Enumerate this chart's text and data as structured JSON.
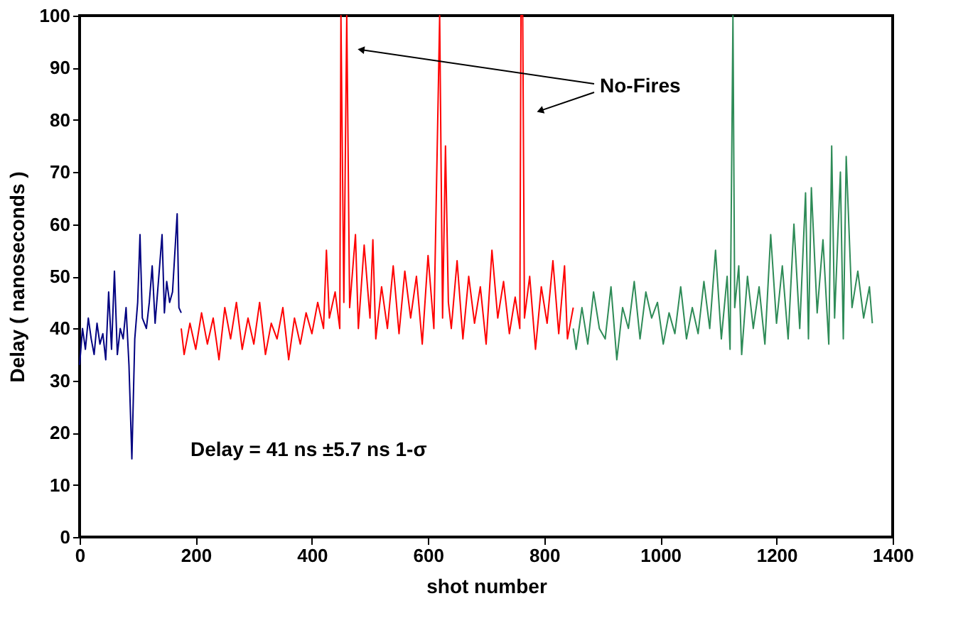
{
  "chart_data": {
    "type": "line",
    "xlabel": "shot number",
    "ylabel": "Delay ( nanoseconds )",
    "xlim": [
      0,
      1400
    ],
    "xticks": [
      0,
      200,
      400,
      600,
      800,
      1000,
      1200,
      1400
    ],
    "ylim": [
      0,
      100
    ],
    "yticks": [
      0,
      10,
      20,
      30,
      40,
      50,
      60,
      70,
      80,
      90,
      100
    ],
    "grid": false,
    "marker": "none",
    "line_style": "solid",
    "annotations": [
      "No-Fires",
      "Delay = 41 ns ±5.7 ns 1-σ"
    ],
    "series": [
      {
        "color": "#000080",
        "x": [
          0,
          5,
          10,
          15,
          20,
          25,
          30,
          35,
          40,
          45,
          50,
          55,
          60,
          65,
          70,
          75,
          80,
          85,
          90,
          95,
          100,
          104,
          108,
          115,
          120,
          125,
          130,
          135,
          142,
          146,
          150,
          155,
          160,
          168,
          171,
          175
        ],
        "values": [
          33,
          40,
          36,
          42,
          38,
          35,
          41,
          37,
          39,
          34,
          47,
          36,
          51,
          35,
          40,
          38,
          44,
          33,
          15,
          38,
          45,
          58,
          42,
          40,
          45,
          52,
          41,
          48,
          58,
          43,
          49,
          45,
          47,
          62,
          44,
          43
        ]
      },
      {
        "color": "#ff0000",
        "x": [
          175,
          180,
          190,
          200,
          210,
          220,
          230,
          240,
          250,
          260,
          270,
          280,
          290,
          300,
          310,
          320,
          330,
          340,
          350,
          360,
          370,
          380,
          390,
          400,
          410,
          420,
          425,
          430,
          440,
          448,
          450,
          455,
          460,
          465,
          475,
          480,
          490,
          500,
          505,
          510,
          520,
          530,
          540,
          550,
          560,
          570,
          580,
          590,
          600,
          610,
          620,
          625,
          630,
          635,
          640,
          650,
          660,
          670,
          680,
          690,
          700,
          710,
          720,
          730,
          740,
          750,
          758,
          760,
          763,
          766,
          775,
          785,
          795,
          805,
          815,
          825,
          835,
          840,
          850
        ],
        "values": [
          40,
          35,
          41,
          36,
          43,
          37,
          42,
          34,
          44,
          38,
          45,
          36,
          42,
          37,
          45,
          35,
          41,
          38,
          44,
          34,
          42,
          37,
          43,
          39,
          45,
          40,
          55,
          42,
          47,
          40,
          100,
          45,
          100,
          44,
          58,
          40,
          56,
          42,
          57,
          38,
          48,
          40,
          52,
          39,
          51,
          42,
          50,
          37,
          54,
          40,
          100,
          42,
          75,
          45,
          40,
          53,
          38,
          50,
          41,
          48,
          37,
          55,
          42,
          49,
          39,
          46,
          40,
          100,
          100,
          42,
          50,
          36,
          48,
          41,
          53,
          39,
          52,
          38,
          44
        ]
      },
      {
        "color": "#2e8b57",
        "x": [
          850,
          855,
          865,
          875,
          885,
          895,
          905,
          915,
          925,
          935,
          945,
          955,
          965,
          975,
          985,
          995,
          1005,
          1015,
          1025,
          1035,
          1045,
          1055,
          1065,
          1075,
          1085,
          1095,
          1105,
          1115,
          1120,
          1125,
          1128,
          1135,
          1140,
          1150,
          1160,
          1170,
          1180,
          1190,
          1200,
          1210,
          1220,
          1230,
          1240,
          1250,
          1255,
          1260,
          1270,
          1280,
          1290,
          1295,
          1300,
          1310,
          1315,
          1320,
          1330,
          1340,
          1350,
          1360,
          1365
        ],
        "values": [
          40,
          36,
          44,
          37,
          47,
          40,
          38,
          48,
          34,
          44,
          40,
          49,
          38,
          47,
          42,
          45,
          37,
          43,
          39,
          48,
          38,
          44,
          39,
          49,
          40,
          55,
          38,
          50,
          36,
          100,
          44,
          52,
          35,
          50,
          40,
          48,
          37,
          58,
          41,
          52,
          38,
          60,
          40,
          66,
          38,
          67,
          43,
          57,
          37,
          75,
          42,
          70,
          38,
          73,
          44,
          51,
          42,
          48,
          41
        ]
      }
    ]
  }
}
